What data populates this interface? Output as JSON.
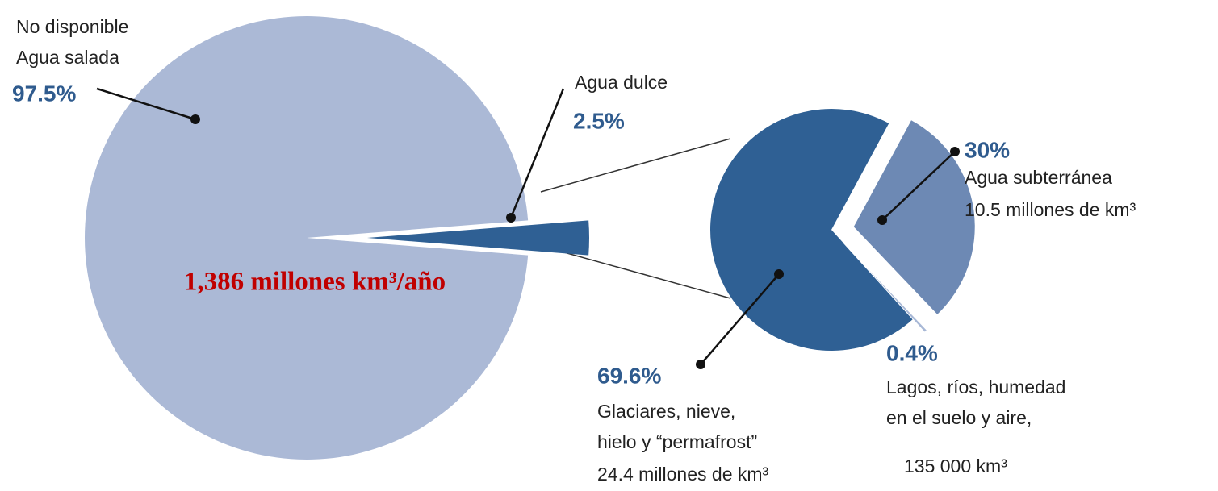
{
  "chart_data": [
    {
      "type": "pie",
      "labels": [
        [
          "No disponible",
          "Agua salada"
        ],
        [
          "Agua dulce"
        ]
      ],
      "values": [
        97.5,
        2.5
      ],
      "value_labels": [
        "97.5%",
        "2.5%"
      ],
      "colors": [
        "#abb9d6",
        "#2f6094"
      ],
      "annotation": "1,386 millones km³/año"
    },
    {
      "type": "pie",
      "labels": [
        [
          "Glaciares, nieve,",
          "hielo y “permafrost”"
        ],
        [
          "Agua subterránea"
        ],
        [
          "Lagos, ríos, humedad",
          "en el suelo y aire,"
        ]
      ],
      "details": [
        "24.4 millones de km³",
        "10.5 millones de km³",
        "135 000 km³"
      ],
      "values": [
        69.6,
        30,
        0.4
      ],
      "value_labels": [
        "69.6%",
        "30%",
        "0.4%"
      ],
      "colors": [
        "#2f6094",
        "#6d89b4",
        "#a8b8d6"
      ]
    }
  ]
}
